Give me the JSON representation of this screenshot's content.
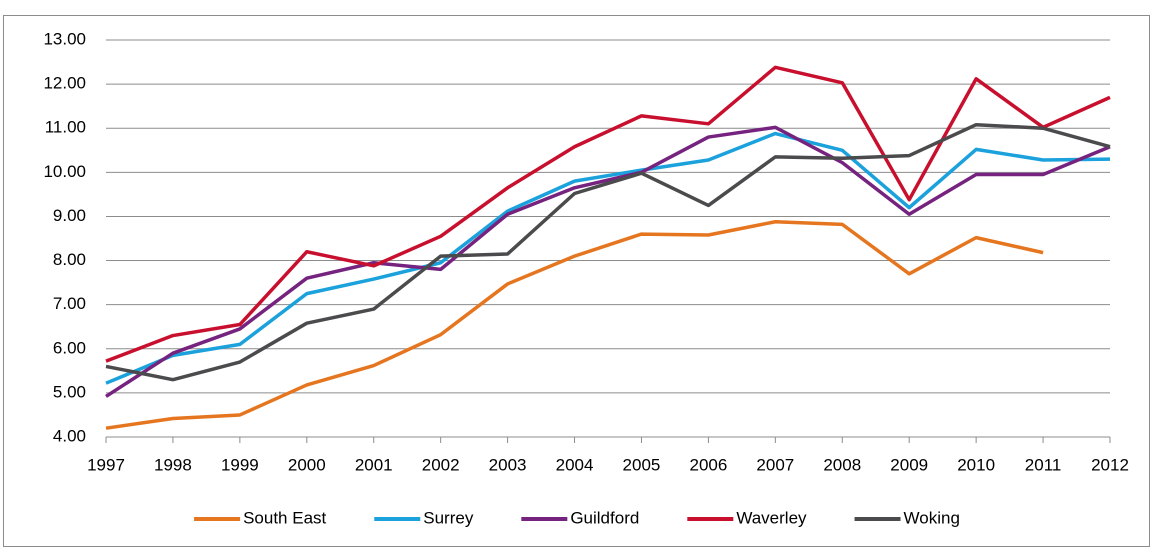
{
  "chart_data": {
    "type": "line",
    "categories": [
      "1997",
      "1998",
      "1999",
      "2000",
      "2001",
      "2002",
      "2003",
      "2004",
      "2005",
      "2006",
      "2007",
      "2008",
      "2009",
      "2010",
      "2011",
      "2012"
    ],
    "series": [
      {
        "name": "South East",
        "color": "#e5761f",
        "values": [
          4.2,
          4.42,
          4.5,
          5.18,
          5.62,
          6.32,
          7.47,
          8.1,
          8.6,
          8.58,
          8.88,
          8.82,
          7.7,
          8.52,
          8.18,
          null
        ]
      },
      {
        "name": "Surrey",
        "color": "#1ba1db",
        "values": [
          5.22,
          5.85,
          6.1,
          7.25,
          7.58,
          7.95,
          9.12,
          9.8,
          10.05,
          10.28,
          10.88,
          10.5,
          9.2,
          10.52,
          10.28,
          10.3
        ]
      },
      {
        "name": "Guildford",
        "color": "#75237f",
        "values": [
          4.92,
          5.9,
          6.45,
          7.6,
          7.95,
          7.8,
          9.05,
          9.65,
          10.0,
          10.8,
          11.02,
          10.22,
          9.05,
          9.95,
          9.95,
          10.58
        ]
      },
      {
        "name": "Waverley",
        "color": "#c8102e",
        "values": [
          5.72,
          6.3,
          6.55,
          8.2,
          7.88,
          8.55,
          9.65,
          10.58,
          11.28,
          11.1,
          12.38,
          12.03,
          9.38,
          12.12,
          11.02,
          11.7
        ]
      },
      {
        "name": "Woking",
        "color": "#4b4b4d",
        "values": [
          5.6,
          5.3,
          5.7,
          6.58,
          6.9,
          8.1,
          8.15,
          9.52,
          9.98,
          9.25,
          10.35,
          10.32,
          10.38,
          11.08,
          11.0,
          10.58
        ]
      }
    ],
    "ylim": [
      4,
      13
    ],
    "yticks": [
      {
        "value": 4,
        "label": "4.00"
      },
      {
        "value": 5,
        "label": "5.00"
      },
      {
        "value": 6,
        "label": "6.00"
      },
      {
        "value": 7,
        "label": "7.00"
      },
      {
        "value": 8,
        "label": "8.00"
      },
      {
        "value": 9,
        "label": "9.00"
      },
      {
        "value": 10,
        "label": "10.00"
      },
      {
        "value": 11,
        "label": "11.00"
      },
      {
        "value": 12,
        "label": "12.00"
      },
      {
        "value": 13,
        "label": "13.00"
      }
    ],
    "grid": true,
    "legend": "bottom"
  }
}
